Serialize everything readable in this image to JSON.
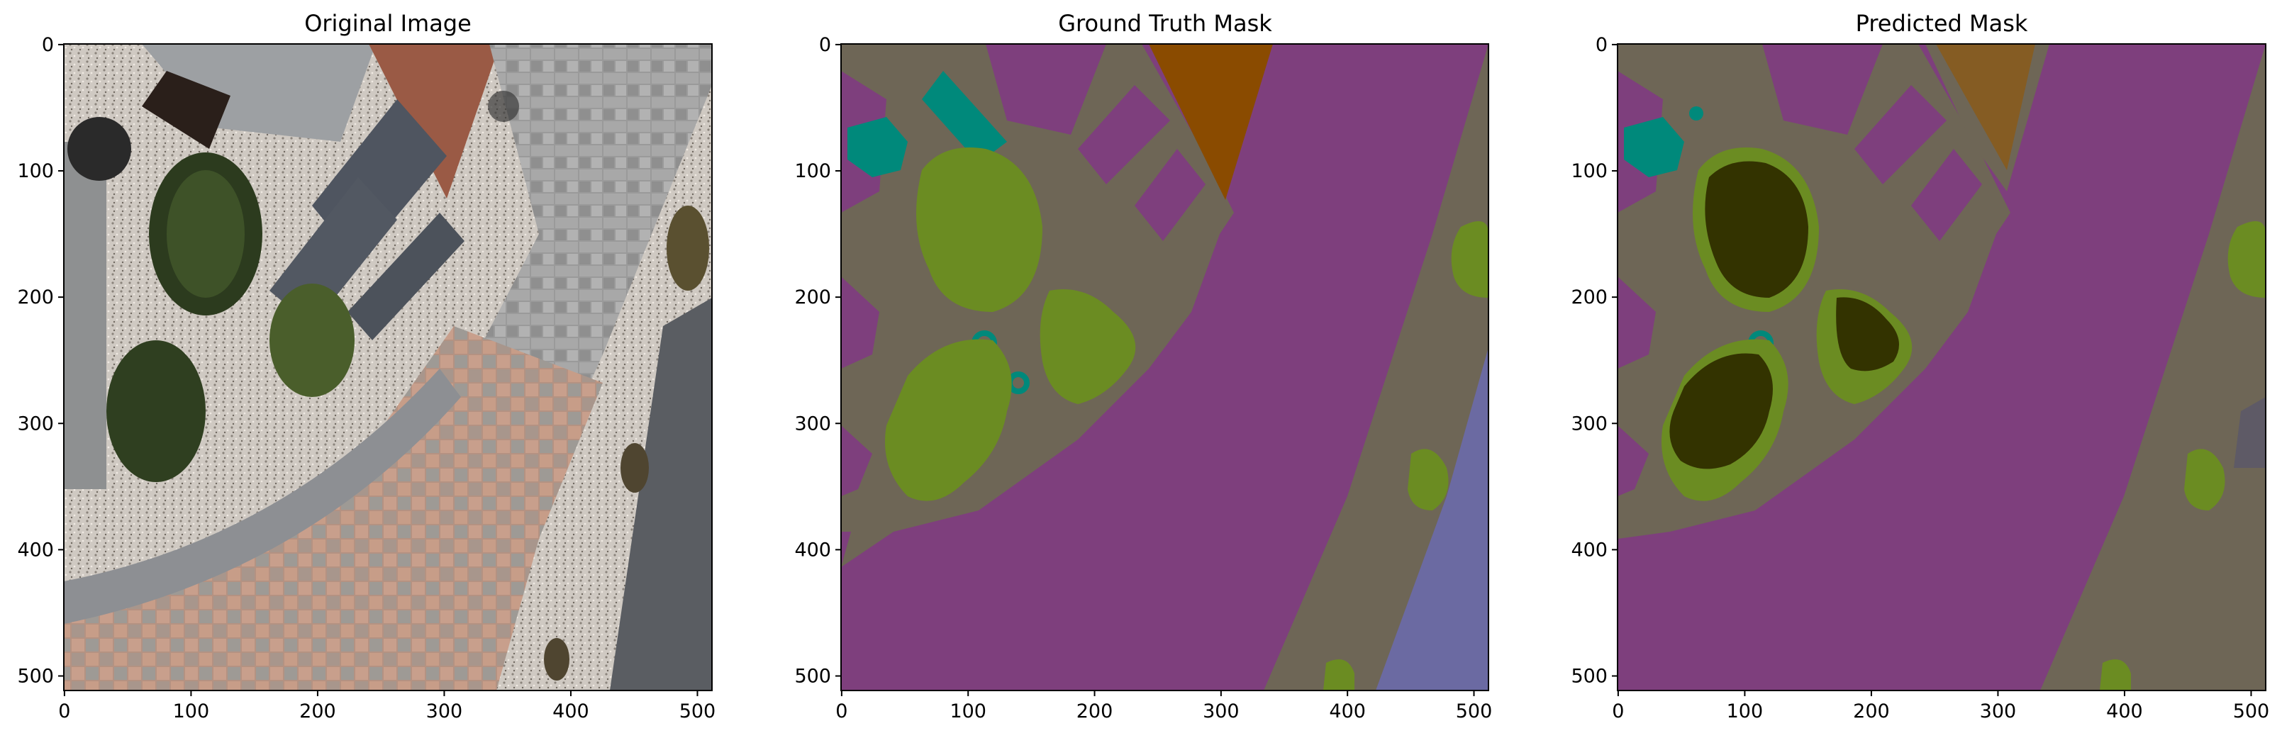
{
  "figure": {
    "panels": [
      {
        "title": "Original Image",
        "x_ticks": [
          "0",
          "100",
          "200",
          "300",
          "400",
          "500"
        ],
        "y_ticks": [
          "0",
          "100",
          "200",
          "300",
          "400",
          "500"
        ],
        "kind": "photo"
      },
      {
        "title": "Ground Truth Mask",
        "x_ticks": [
          "0",
          "100",
          "200",
          "300",
          "400",
          "500"
        ],
        "y_ticks": [
          "0",
          "100",
          "200",
          "300",
          "400",
          "500"
        ],
        "kind": "mask"
      },
      {
        "title": "Predicted Mask",
        "x_ticks": [
          "0",
          "100",
          "200",
          "300",
          "400",
          "500"
        ],
        "y_ticks": [
          "0",
          "100",
          "200",
          "300",
          "400",
          "500"
        ],
        "kind": "mask"
      }
    ],
    "axis_range": [
      0,
      511
    ],
    "colors": {
      "paved_area": "#7e3f7d",
      "gravel": "#6e6656",
      "vegetation": "#6b8c22",
      "dark_vegetation": "#333300",
      "object_teal": "#00897b",
      "roof_brown": "#8a4b00",
      "water_blue": "#6b6aa2"
    }
  }
}
